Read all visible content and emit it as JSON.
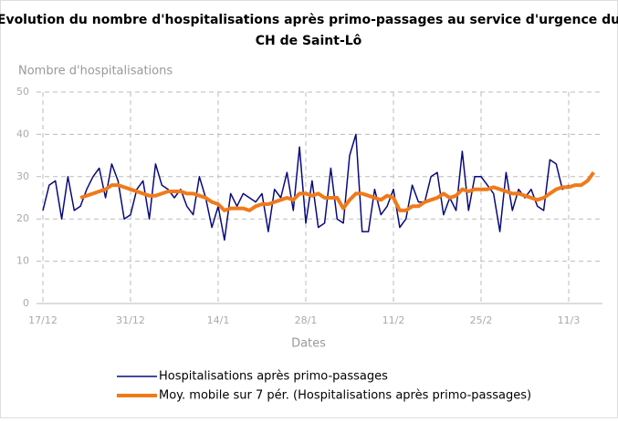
{
  "chart_data": {
    "type": "line",
    "title": "Evolution du nombre d'hospitalisations après primo-passages au service d'urgence du",
    "subtitle": "CH de Saint-Lô",
    "y_label": "Nombre d'hospitalisations",
    "x_label": "Dates",
    "categories": [
      "17/12",
      null,
      null,
      null,
      null,
      null,
      null,
      null,
      null,
      null,
      null,
      null,
      null,
      null,
      "31/12",
      null,
      null,
      null,
      null,
      null,
      null,
      null,
      null,
      null,
      null,
      null,
      null,
      null,
      "14/1",
      null,
      null,
      null,
      null,
      null,
      null,
      null,
      null,
      null,
      null,
      null,
      null,
      null,
      "28/1",
      null,
      null,
      null,
      null,
      null,
      null,
      null,
      null,
      null,
      null,
      null,
      null,
      null,
      "11/2",
      null,
      null,
      null,
      null,
      null,
      null,
      null,
      null,
      null,
      null,
      null,
      null,
      null,
      "25/2",
      null,
      null,
      null,
      null,
      null,
      null,
      null,
      null,
      null,
      null,
      null,
      null,
      null,
      "11/3",
      null,
      null,
      null,
      null
    ],
    "series": [
      {
        "name": "Hospitalisations après primo-passages",
        "color": "#0a0a7a",
        "width": 1.5,
        "values": [
          22,
          28,
          29,
          20,
          30,
          22,
          23,
          27,
          30,
          32,
          25,
          33,
          29,
          20,
          21,
          27,
          29,
          20,
          33,
          28,
          27,
          25,
          27,
          23,
          21,
          30,
          25,
          18,
          23,
          15,
          26,
          23,
          26,
          25,
          24,
          26,
          17,
          27,
          25,
          31,
          22,
          37,
          19,
          29,
          18,
          19,
          32,
          20,
          19,
          35,
          40,
          17,
          17,
          27,
          21,
          23,
          27,
          18,
          20,
          28,
          24,
          24,
          30,
          31,
          21,
          25,
          22,
          36,
          22,
          30,
          30,
          28,
          26,
          17,
          31,
          22,
          27,
          25,
          27,
          23,
          22,
          34,
          33,
          27,
          28,
          null,
          null,
          null,
          null
        ]
      },
      {
        "name": "Moy. mobile sur 7 pér. (Hospitalisations après primo-passages)",
        "color": "#f07a1a",
        "width": 4,
        "values": [
          null,
          null,
          null,
          null,
          null,
          null,
          25,
          25.5,
          26,
          26.5,
          27,
          28,
          28,
          27.5,
          27,
          26.5,
          26,
          25.5,
          25.5,
          26,
          26.5,
          26.5,
          26.5,
          26,
          26,
          25.5,
          25,
          24,
          23.5,
          22,
          22.5,
          22.5,
          22.5,
          22,
          23,
          23.5,
          23.5,
          24,
          24.5,
          25,
          24.5,
          26,
          26,
          25.5,
          26,
          25,
          25,
          25,
          22.5,
          24.5,
          26,
          26,
          25.5,
          25,
          24.5,
          25.5,
          25,
          22,
          22,
          23,
          23,
          24,
          24.5,
          25,
          26,
          25,
          25.5,
          27,
          26.5,
          27,
          27,
          27,
          27.5,
          27,
          26.5,
          26,
          26,
          25.5,
          25,
          24.5,
          25,
          26,
          27,
          27.5,
          27.5,
          28,
          28,
          29,
          31
        ]
      }
    ],
    "ylim": [
      0,
      50
    ],
    "yticks": [
      0,
      10,
      20,
      30,
      40,
      50
    ],
    "grid": true
  }
}
